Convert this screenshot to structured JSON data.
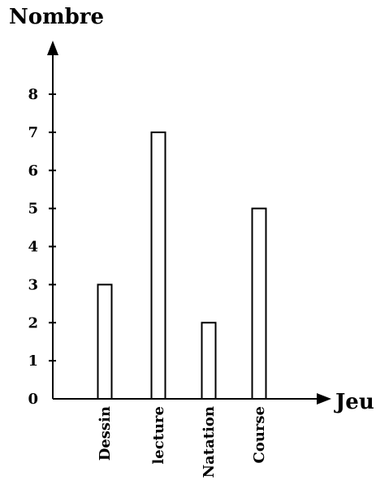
{
  "chart_data": {
    "type": "bar",
    "ylabel": "Nombre",
    "xlabel": "Jeu",
    "categories": [
      "Dessin",
      "lecture",
      "Natation",
      "Course"
    ],
    "values": [
      3,
      7,
      2,
      5
    ],
    "y_ticks": [
      0,
      1,
      2,
      3,
      4,
      5,
      6,
      7,
      8
    ],
    "ylim": [
      0,
      8
    ],
    "grid": false,
    "bar_fill": "#ffffff",
    "bar_stroke": "#000000"
  }
}
